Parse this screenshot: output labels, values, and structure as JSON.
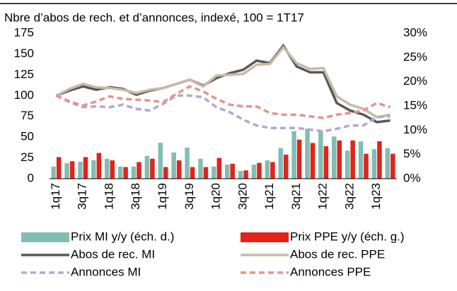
{
  "chart_data": {
    "type": "combo",
    "title": "Nbre d’abos de rech. et d’annonces, indexé, 100 = 1T17",
    "categories": [
      "1q17",
      null,
      "3q17",
      null,
      "1q18",
      null,
      "3q18",
      null,
      "1q19",
      null,
      "3q19",
      null,
      "1q20",
      null,
      "3q20",
      null,
      "1q21",
      null,
      "3q21",
      null,
      "1q22",
      null,
      "3q22",
      null,
      "1q23",
      null
    ],
    "ylim": [
      0,
      175
    ],
    "yticks": [
      0,
      25,
      50,
      75,
      100,
      125,
      150,
      175
    ],
    "y2lim": [
      0,
      30
    ],
    "y2ticks": [
      {
        "value": 0,
        "label": "0%"
      },
      {
        "value": 5,
        "label": "5%"
      },
      {
        "value": 10,
        "label": "10%"
      },
      {
        "value": 15,
        "label": "15%"
      },
      {
        "value": 20,
        "label": "20%"
      },
      {
        "value": 25,
        "label": "25%"
      },
      {
        "value": 30,
        "label": "30%"
      }
    ],
    "series": [
      {
        "name": "Prix MI y/y (éch. d.)",
        "type": "bar",
        "axis": "y2",
        "color": "#82bdb5",
        "values": [
          2.5,
          3.2,
          3.5,
          3.8,
          4.1,
          2.5,
          2.5,
          4.7,
          7.4,
          5.4,
          6.4,
          4.1,
          2.5,
          2.9,
          1.6,
          2.9,
          3.8,
          6.3,
          9.8,
          10.3,
          9.9,
          8.7,
          5.8,
          7.7,
          6.1,
          6.3
        ]
      },
      {
        "name": "Prix PPE y/y (éch. g.)",
        "type": "bar",
        "color": "#e2231a",
        "values": [
          26,
          21,
          26,
          31,
          22,
          14,
          20,
          24,
          14,
          22,
          14,
          14,
          25,
          18,
          10,
          19,
          20,
          29,
          47,
          43,
          39,
          46,
          46,
          30,
          45,
          30
        ]
      },
      {
        "name": "Abos de rec. MI",
        "type": "line",
        "color": "#58585a",
        "values": [
          100,
          106,
          111,
          107,
          110,
          108,
          101,
          106,
          109,
          114,
          119,
          112,
          121,
          127,
          131,
          142,
          139,
          160,
          135,
          128,
          128,
          91,
          82,
          77,
          68,
          70
        ]
      },
      {
        "name": "Abos de rec. PPE",
        "type": "line",
        "color": "#c9b9a9",
        "values": [
          100,
          108,
          114,
          110,
          109,
          107,
          103,
          107,
          109,
          114,
          119,
          111,
          124,
          125,
          126,
          137,
          138,
          158,
          139,
          132,
          133,
          99,
          89,
          84,
          74,
          77
        ]
      },
      {
        "name": "Annonces MI",
        "type": "line",
        "dash": true,
        "color": "#b5a8cc",
        "values": [
          100,
          92,
          86,
          87,
          86,
          89,
          84,
          82,
          90,
          100,
          100,
          98,
          86,
          80,
          71,
          64,
          61,
          61,
          61,
          59,
          57,
          60,
          64,
          64,
          74,
          75
        ]
      },
      {
        "name": "Annonces PPE",
        "type": "line",
        "dash": true,
        "color": "#e8928c",
        "values": [
          100,
          93,
          88,
          93,
          99,
          96,
          95,
          94,
          92,
          102,
          111,
          105,
          96,
          89,
          87,
          87,
          79,
          77,
          77,
          75,
          73,
          77,
          79,
          82,
          91,
          86
        ]
      }
    ]
  }
}
